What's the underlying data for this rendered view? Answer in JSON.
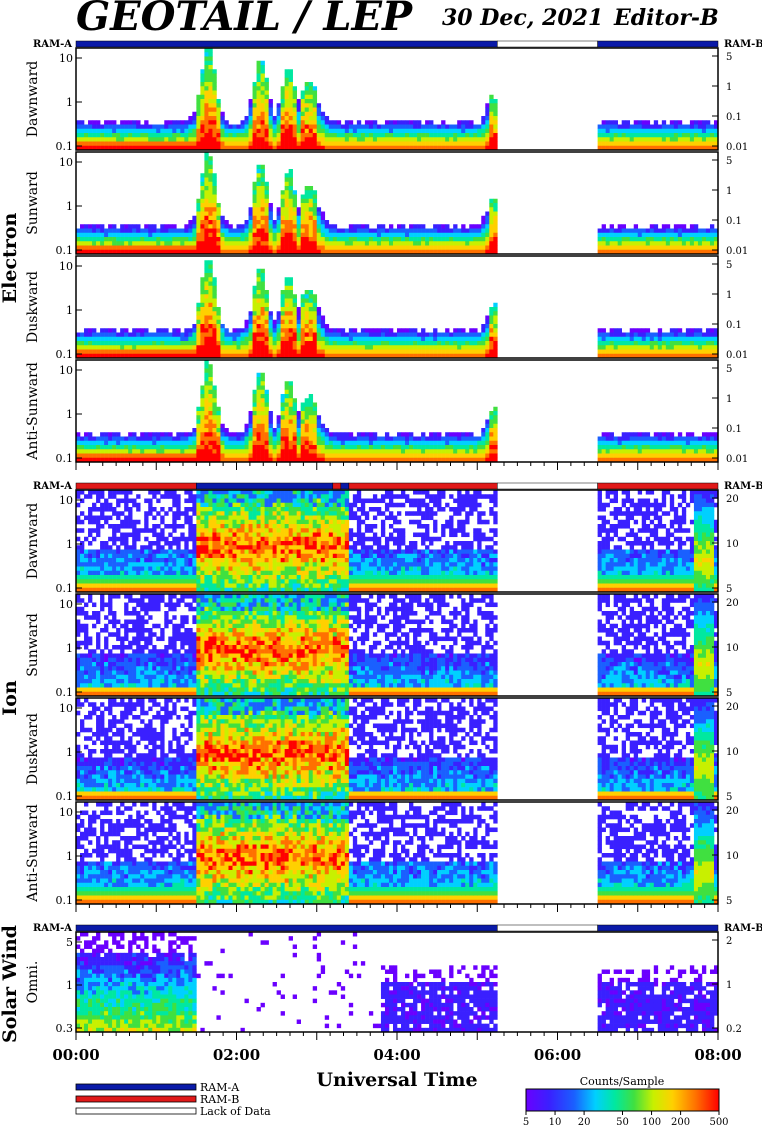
{
  "header": {
    "title": "GEOTAIL / LEP",
    "date": "30 Dec, 2021",
    "editor": "Editor-B"
  },
  "ram_labels": {
    "left": "RAM-A",
    "right": "RAM-B"
  },
  "colors": {
    "ram_a": "#0a1aa8",
    "ram_b": "#e01818",
    "lack": "#ffffff",
    "panel_border": "#000000"
  },
  "chart_data": {
    "type": "heatmap",
    "x_axis": {
      "label": "Universal Time",
      "ticks": [
        "00:00",
        "02:00",
        "04:00",
        "06:00",
        "08:00"
      ],
      "range_hours": [
        0,
        8
      ]
    },
    "data_gap_hours": [
      5.25,
      6.5
    ],
    "colorbar": {
      "title": "Counts/Sample",
      "ticks": [
        "5",
        "10",
        "20",
        "50",
        "100",
        "200",
        "500"
      ],
      "range": [
        5,
        500
      ],
      "scale": "log"
    },
    "legend": [
      {
        "label": "RAM-A",
        "color": "#0a1aa8"
      },
      {
        "label": "RAM-B",
        "color": "#e01818"
      },
      {
        "label": "Lack of Data",
        "color": "#ffffff"
      }
    ],
    "groups": [
      {
        "name": "Electron",
        "ram_segments": [
          {
            "from": 0,
            "to": 5.25,
            "mode": "A"
          },
          {
            "from": 5.25,
            "to": 6.5,
            "mode": "none"
          },
          {
            "from": 6.5,
            "to": 8,
            "mode": "A"
          }
        ],
        "panels": [
          {
            "name": "Dawnward",
            "left_ticks": [
              "10",
              "1",
              "0.1"
            ],
            "right_ticks": [
              "5",
              "1",
              "0.1",
              "0.01"
            ]
          },
          {
            "name": "Sunward",
            "left_ticks": [
              "10",
              "1",
              "0.1"
            ],
            "right_ticks": [
              "5",
              "1",
              "0.1",
              "0.01"
            ]
          },
          {
            "name": "Duskward",
            "left_ticks": [
              "10",
              "1",
              "0.1"
            ],
            "right_ticks": [
              "5",
              "1",
              "0.1",
              "0.01"
            ]
          },
          {
            "name": "Anti-Sunward",
            "left_ticks": [
              "10",
              "1",
              "0.1"
            ],
            "right_ticks": [
              "5",
              "1",
              "0.1",
              "0.01"
            ]
          }
        ]
      },
      {
        "name": "Ion",
        "ram_segments": [
          {
            "from": 0,
            "to": 1.5,
            "mode": "B"
          },
          {
            "from": 1.5,
            "to": 3.2,
            "mode": "A"
          },
          {
            "from": 3.2,
            "to": 3.3,
            "mode": "B"
          },
          {
            "from": 3.3,
            "to": 3.4,
            "mode": "A"
          },
          {
            "from": 3.4,
            "to": 5.25,
            "mode": "B"
          },
          {
            "from": 5.25,
            "to": 6.5,
            "mode": "none"
          },
          {
            "from": 6.5,
            "to": 8,
            "mode": "B"
          }
        ],
        "panels": [
          {
            "name": "Dawnward",
            "left_ticks": [
              "10",
              "1",
              "0.1"
            ],
            "right_ticks": [
              "20",
              "10",
              "5"
            ]
          },
          {
            "name": "Sunward",
            "left_ticks": [
              "10",
              "1",
              "0.1"
            ],
            "right_ticks": [
              "20",
              "10",
              "5"
            ]
          },
          {
            "name": "Duskward",
            "left_ticks": [
              "10",
              "1",
              "0.1"
            ],
            "right_ticks": [
              "20",
              "10",
              "5"
            ]
          },
          {
            "name": "Anti-Sunward",
            "left_ticks": [
              "10",
              "1",
              "0.1"
            ],
            "right_ticks": [
              "20",
              "10",
              "5"
            ]
          }
        ]
      },
      {
        "name": "Solar Wind",
        "ram_segments": [
          {
            "from": 0,
            "to": 5.25,
            "mode": "A"
          },
          {
            "from": 5.25,
            "to": 6.5,
            "mode": "none"
          },
          {
            "from": 6.5,
            "to": 8,
            "mode": "A"
          }
        ],
        "panels": [
          {
            "name": "Omni.",
            "left_ticks": [
              "5",
              "1",
              "0.3"
            ],
            "right_ticks": [
              "2",
              "1",
              "0.2"
            ]
          }
        ]
      }
    ]
  }
}
